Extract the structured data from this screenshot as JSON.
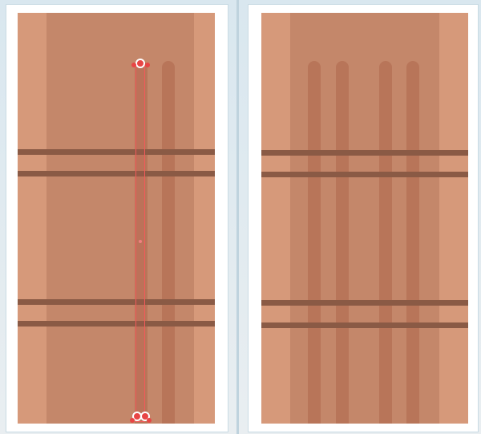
{
  "palette": {
    "background": "#d9e7ef",
    "panel": "#ffffff",
    "wood_light": "#d6997a",
    "wood_mid": "#c4876a",
    "groove": "#b87559",
    "band": "#8a5a45",
    "selection": "#f25a5a"
  },
  "panels": [
    {
      "id": "before",
      "grooves_count": 2,
      "selected_object": "groove-path",
      "selection_active": true
    },
    {
      "id": "after",
      "grooves_count": 4,
      "selection_active": false
    }
  ],
  "icons": {
    "anchor": "anchor-point-icon",
    "handle": "bezier-handle-icon"
  }
}
